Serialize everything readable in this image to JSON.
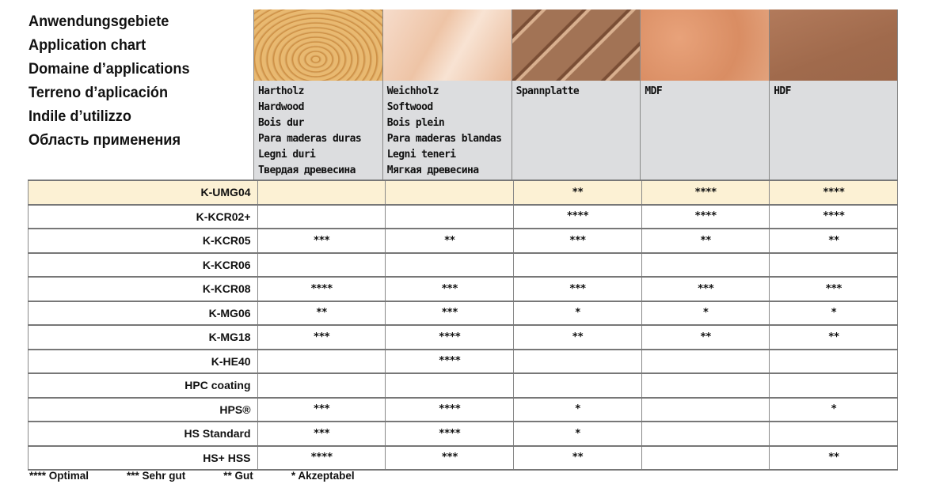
{
  "titles": [
    "Anwendungsgebiete",
    "Application chart",
    "Domaine d’applications",
    "Terreno d’aplicación",
    "Indile d’utilizzo",
    "Область применения"
  ],
  "materials": [
    {
      "lines": [
        "Hartholz",
        "Hardwood",
        "Bois dur",
        "Para maderas duras",
        "Legni duri",
        "Твердая древесина"
      ]
    },
    {
      "lines": [
        "Weichholz",
        "Softwood",
        "Bois plein",
        "Para maderas blandas",
        "Legni teneri",
        "Мягкая древесина"
      ]
    },
    {
      "lines": [
        "Spannplatte"
      ]
    },
    {
      "lines": [
        "MDF"
      ]
    },
    {
      "lines": [
        "HDF"
      ]
    }
  ],
  "rows": [
    {
      "name": "K-UMG04",
      "highlight": true,
      "ratings": [
        "",
        "",
        "**",
        "****",
        "****"
      ]
    },
    {
      "name": "K-KCR02+",
      "ratings": [
        "",
        "",
        "****",
        "****",
        "****"
      ]
    },
    {
      "name": "K-KCR05",
      "ratings": [
        "***",
        "**",
        "***",
        "**",
        "**"
      ]
    },
    {
      "name": "K-KCR06",
      "ratings": [
        "",
        "",
        "",
        "",
        ""
      ]
    },
    {
      "name": "K-KCR08",
      "ratings": [
        "****",
        "***",
        "***",
        "***",
        "***"
      ]
    },
    {
      "name": "K-MG06",
      "ratings": [
        "**",
        "***",
        "*",
        "*",
        "*"
      ]
    },
    {
      "name": "K-MG18",
      "ratings": [
        "***",
        "****",
        "**",
        "**",
        "**"
      ]
    },
    {
      "name": "K-HE40",
      "ratings": [
        "",
        "****",
        "",
        "",
        ""
      ]
    },
    {
      "name": "HPC coating",
      "ratings": [
        "",
        "",
        "",
        "",
        ""
      ]
    },
    {
      "name": "HPS®",
      "ratings": [
        "***",
        "****",
        "*",
        "",
        "*"
      ]
    },
    {
      "name": "HS Standard",
      "ratings": [
        "***",
        "****",
        "*",
        "",
        ""
      ]
    },
    {
      "name": "HS+ HSS",
      "ratings": [
        "****",
        "***",
        "**",
        "",
        "**"
      ]
    }
  ],
  "legend": [
    "**** Optimal",
    "*** Sehr gut",
    "** Gut",
    "* Akzeptabel"
  ],
  "colors": {
    "highlight_row": "#fcf1d4",
    "header_text_bg": "#dcdddf"
  }
}
